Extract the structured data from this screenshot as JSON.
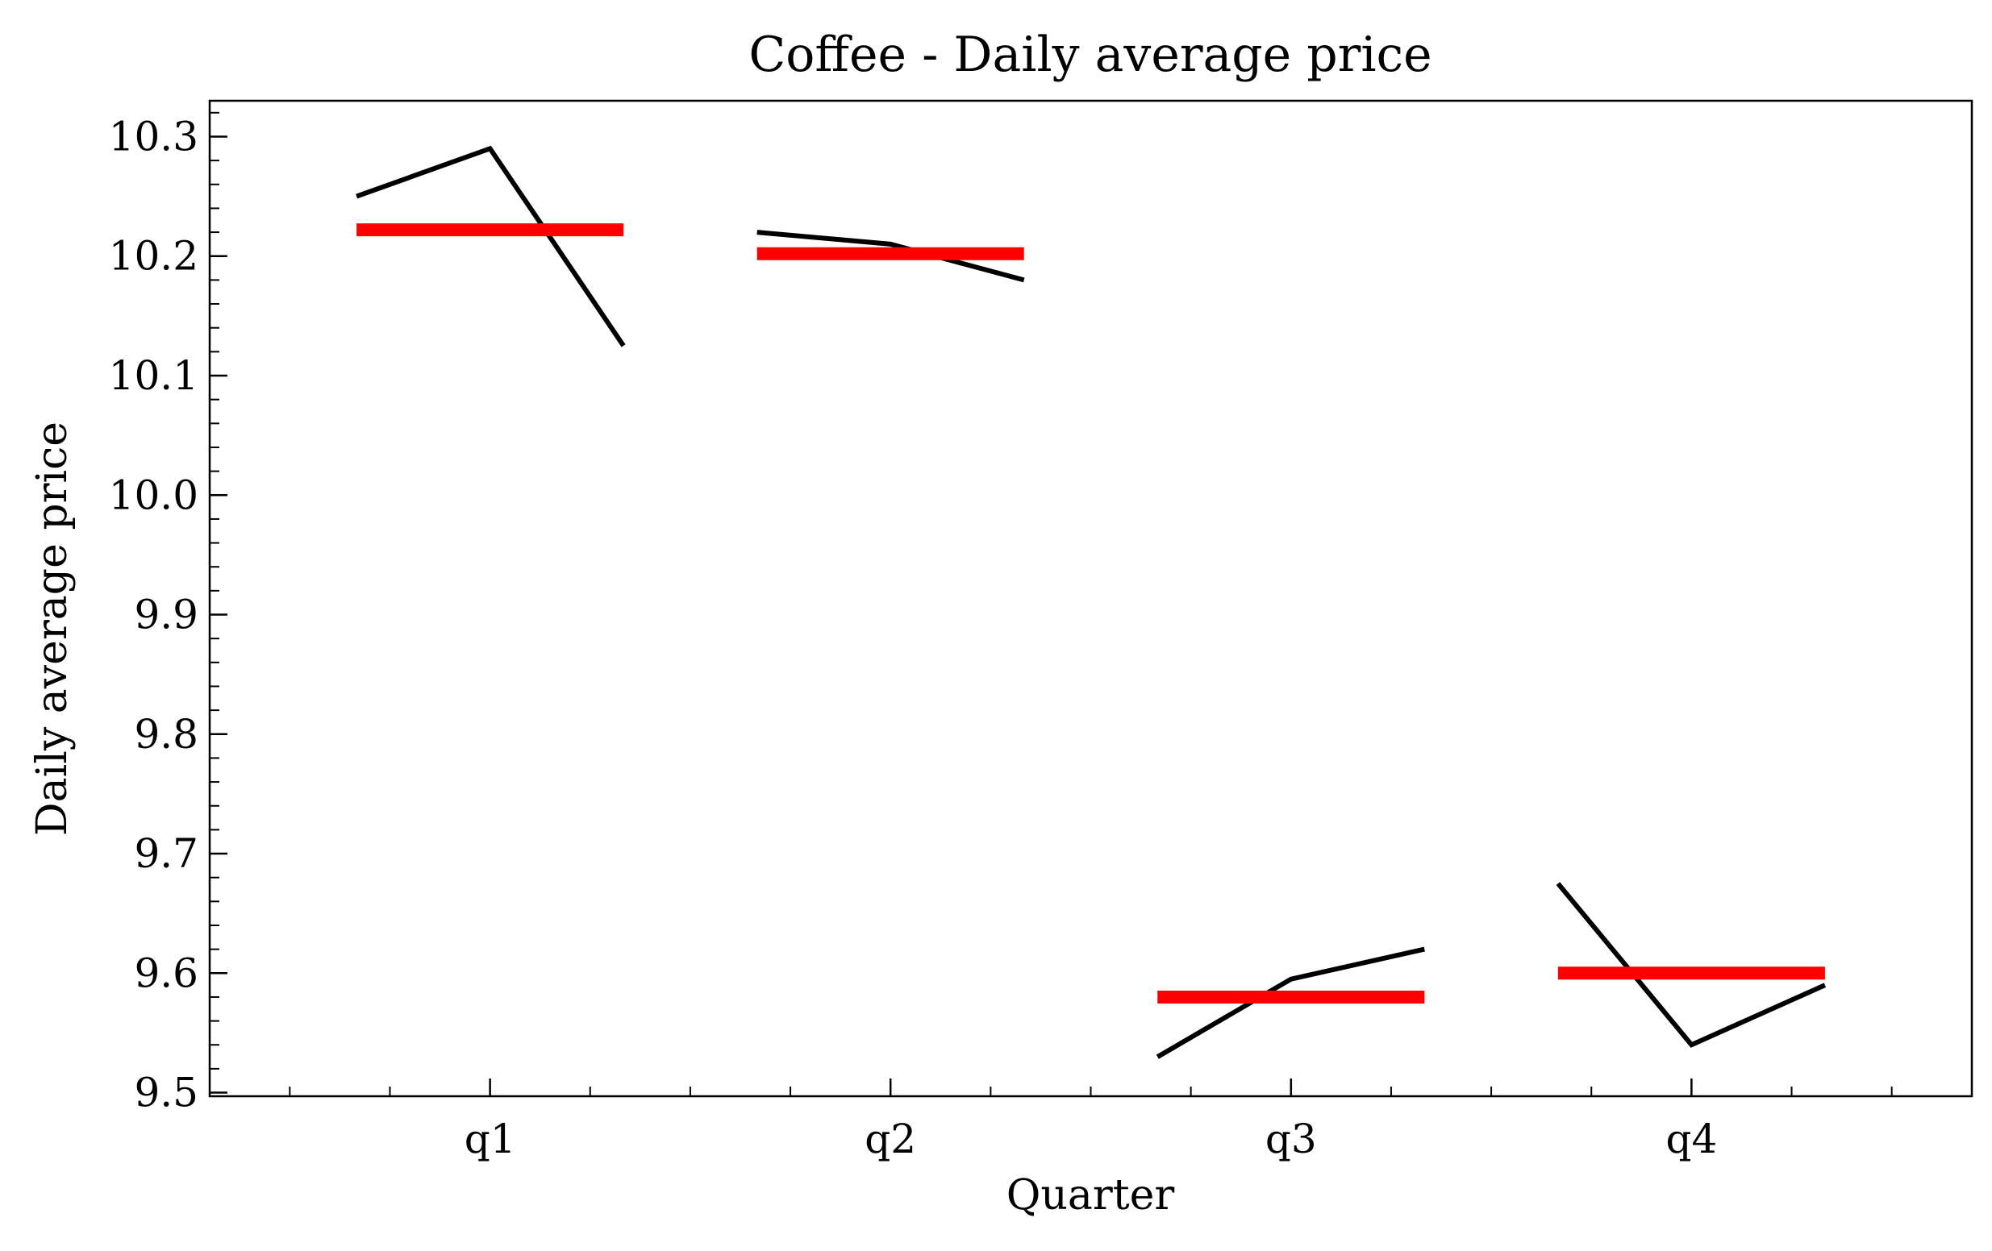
{
  "chart_data": {
    "type": "line",
    "title": "Coffee - Daily average price",
    "xlabel": "Quarter",
    "ylabel": "Daily average price",
    "categories": [
      "q1",
      "q2",
      "q3",
      "q4"
    ],
    "ylim": [
      9.497,
      10.33
    ],
    "yticks": [
      "9.5",
      "9.6",
      "9.7",
      "9.8",
      "9.9",
      "10.0",
      "10.1",
      "10.2",
      "10.3"
    ],
    "grid": false,
    "legend": "none",
    "series": [
      {
        "values": [
          [
            10.25,
            10.29,
            10.125
          ],
          [
            10.22,
            10.21,
            10.18
          ],
          [
            9.53,
            9.595,
            9.62
          ],
          [
            9.675,
            9.54,
            9.59
          ]
        ],
        "color": "#000000"
      },
      {
        "values": [
          10.222,
          10.202,
          9.58,
          9.6
        ],
        "color": "#ff0000"
      }
    ]
  }
}
